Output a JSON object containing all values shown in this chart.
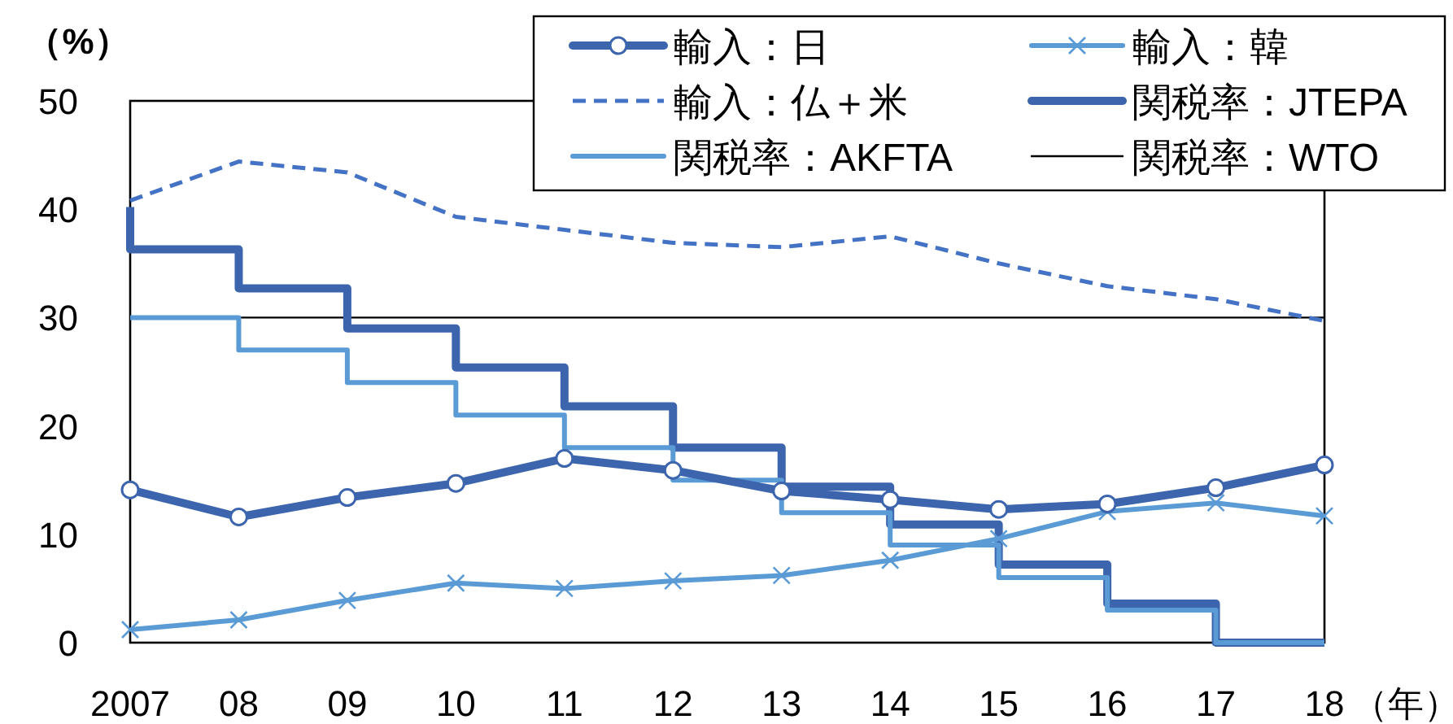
{
  "chart_data": {
    "type": "line",
    "ylabel": "（%）",
    "xlabel": "（年）",
    "categories": [
      "2007",
      "08",
      "09",
      "10",
      "11",
      "12",
      "13",
      "14",
      "15",
      "16",
      "17",
      "18"
    ],
    "ylim": [
      0,
      50
    ],
    "yticks": [
      0,
      10,
      20,
      30,
      40,
      50
    ],
    "grid": false,
    "legend": "top right",
    "series": [
      {
        "name": "輸入：日",
        "color": "#3d65ae",
        "marker": "circle",
        "line_style": "solid",
        "values": [
          14.1,
          11.6,
          13.4,
          14.7,
          17.0,
          15.9,
          14.0,
          13.2,
          12.3,
          12.8,
          14.3,
          16.4
        ]
      },
      {
        "name": "輸入：韓",
        "color": "#5b9bd5",
        "marker": "cross",
        "line_style": "solid",
        "values": [
          1.2,
          2.1,
          3.9,
          5.5,
          5.0,
          5.7,
          6.2,
          7.6,
          9.6,
          12.1,
          12.9,
          11.7
        ]
      },
      {
        "name": "輸入：仏＋米",
        "color": "#4472c4",
        "marker": "none",
        "line_style": "dashed",
        "values": [
          40.8,
          44.4,
          43.4,
          39.3,
          38.1,
          36.9,
          36.5,
          37.5,
          35.0,
          32.9,
          31.7,
          29.7
        ]
      },
      {
        "name": "関税率：JTEPA",
        "color": "#3d65ae",
        "type": "step",
        "marker": "none",
        "line_style": "solid",
        "values": [
          40.2,
          36.3,
          32.7,
          29.0,
          25.4,
          21.8,
          18.0,
          14.4,
          10.9,
          7.2,
          3.6,
          0
        ]
      },
      {
        "name": "関税率：AKFTA",
        "color": "#5b9bd5",
        "type": "step",
        "marker": "none",
        "line_style": "solid",
        "values": [
          30,
          30,
          27,
          24,
          21,
          18,
          15,
          12,
          9,
          6,
          3,
          0
        ]
      },
      {
        "name": "関税率：WTO",
        "color": "#000000",
        "marker": "none",
        "line_style": "solid",
        "values": [
          30,
          30,
          30,
          30,
          30,
          30,
          30,
          30,
          30,
          30,
          30,
          30
        ]
      }
    ]
  }
}
